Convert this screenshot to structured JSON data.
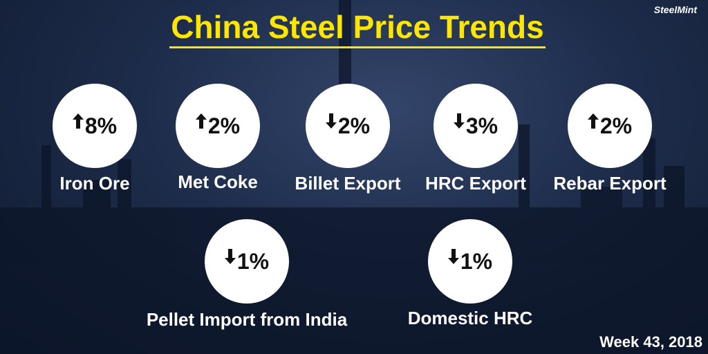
{
  "header": {
    "title": "China Steel Price Trends",
    "brand": "SteelMint"
  },
  "items": [
    {
      "label": "Iron Ore",
      "change": "8%",
      "direction": "up"
    },
    {
      "label": "Met Coke",
      "change": "2%",
      "direction": "up"
    },
    {
      "label": "Billet Export",
      "change": "2%",
      "direction": "down"
    },
    {
      "label": "HRC Export",
      "change": "3%",
      "direction": "down"
    },
    {
      "label": "Rebar Export",
      "change": "2%",
      "direction": "up"
    },
    {
      "label": "Pellet Import from India",
      "change": "1%",
      "direction": "down"
    },
    {
      "label": "Domestic HRC",
      "change": "1%",
      "direction": "down"
    }
  ],
  "footer": {
    "week": "Week 43, 2018"
  }
}
